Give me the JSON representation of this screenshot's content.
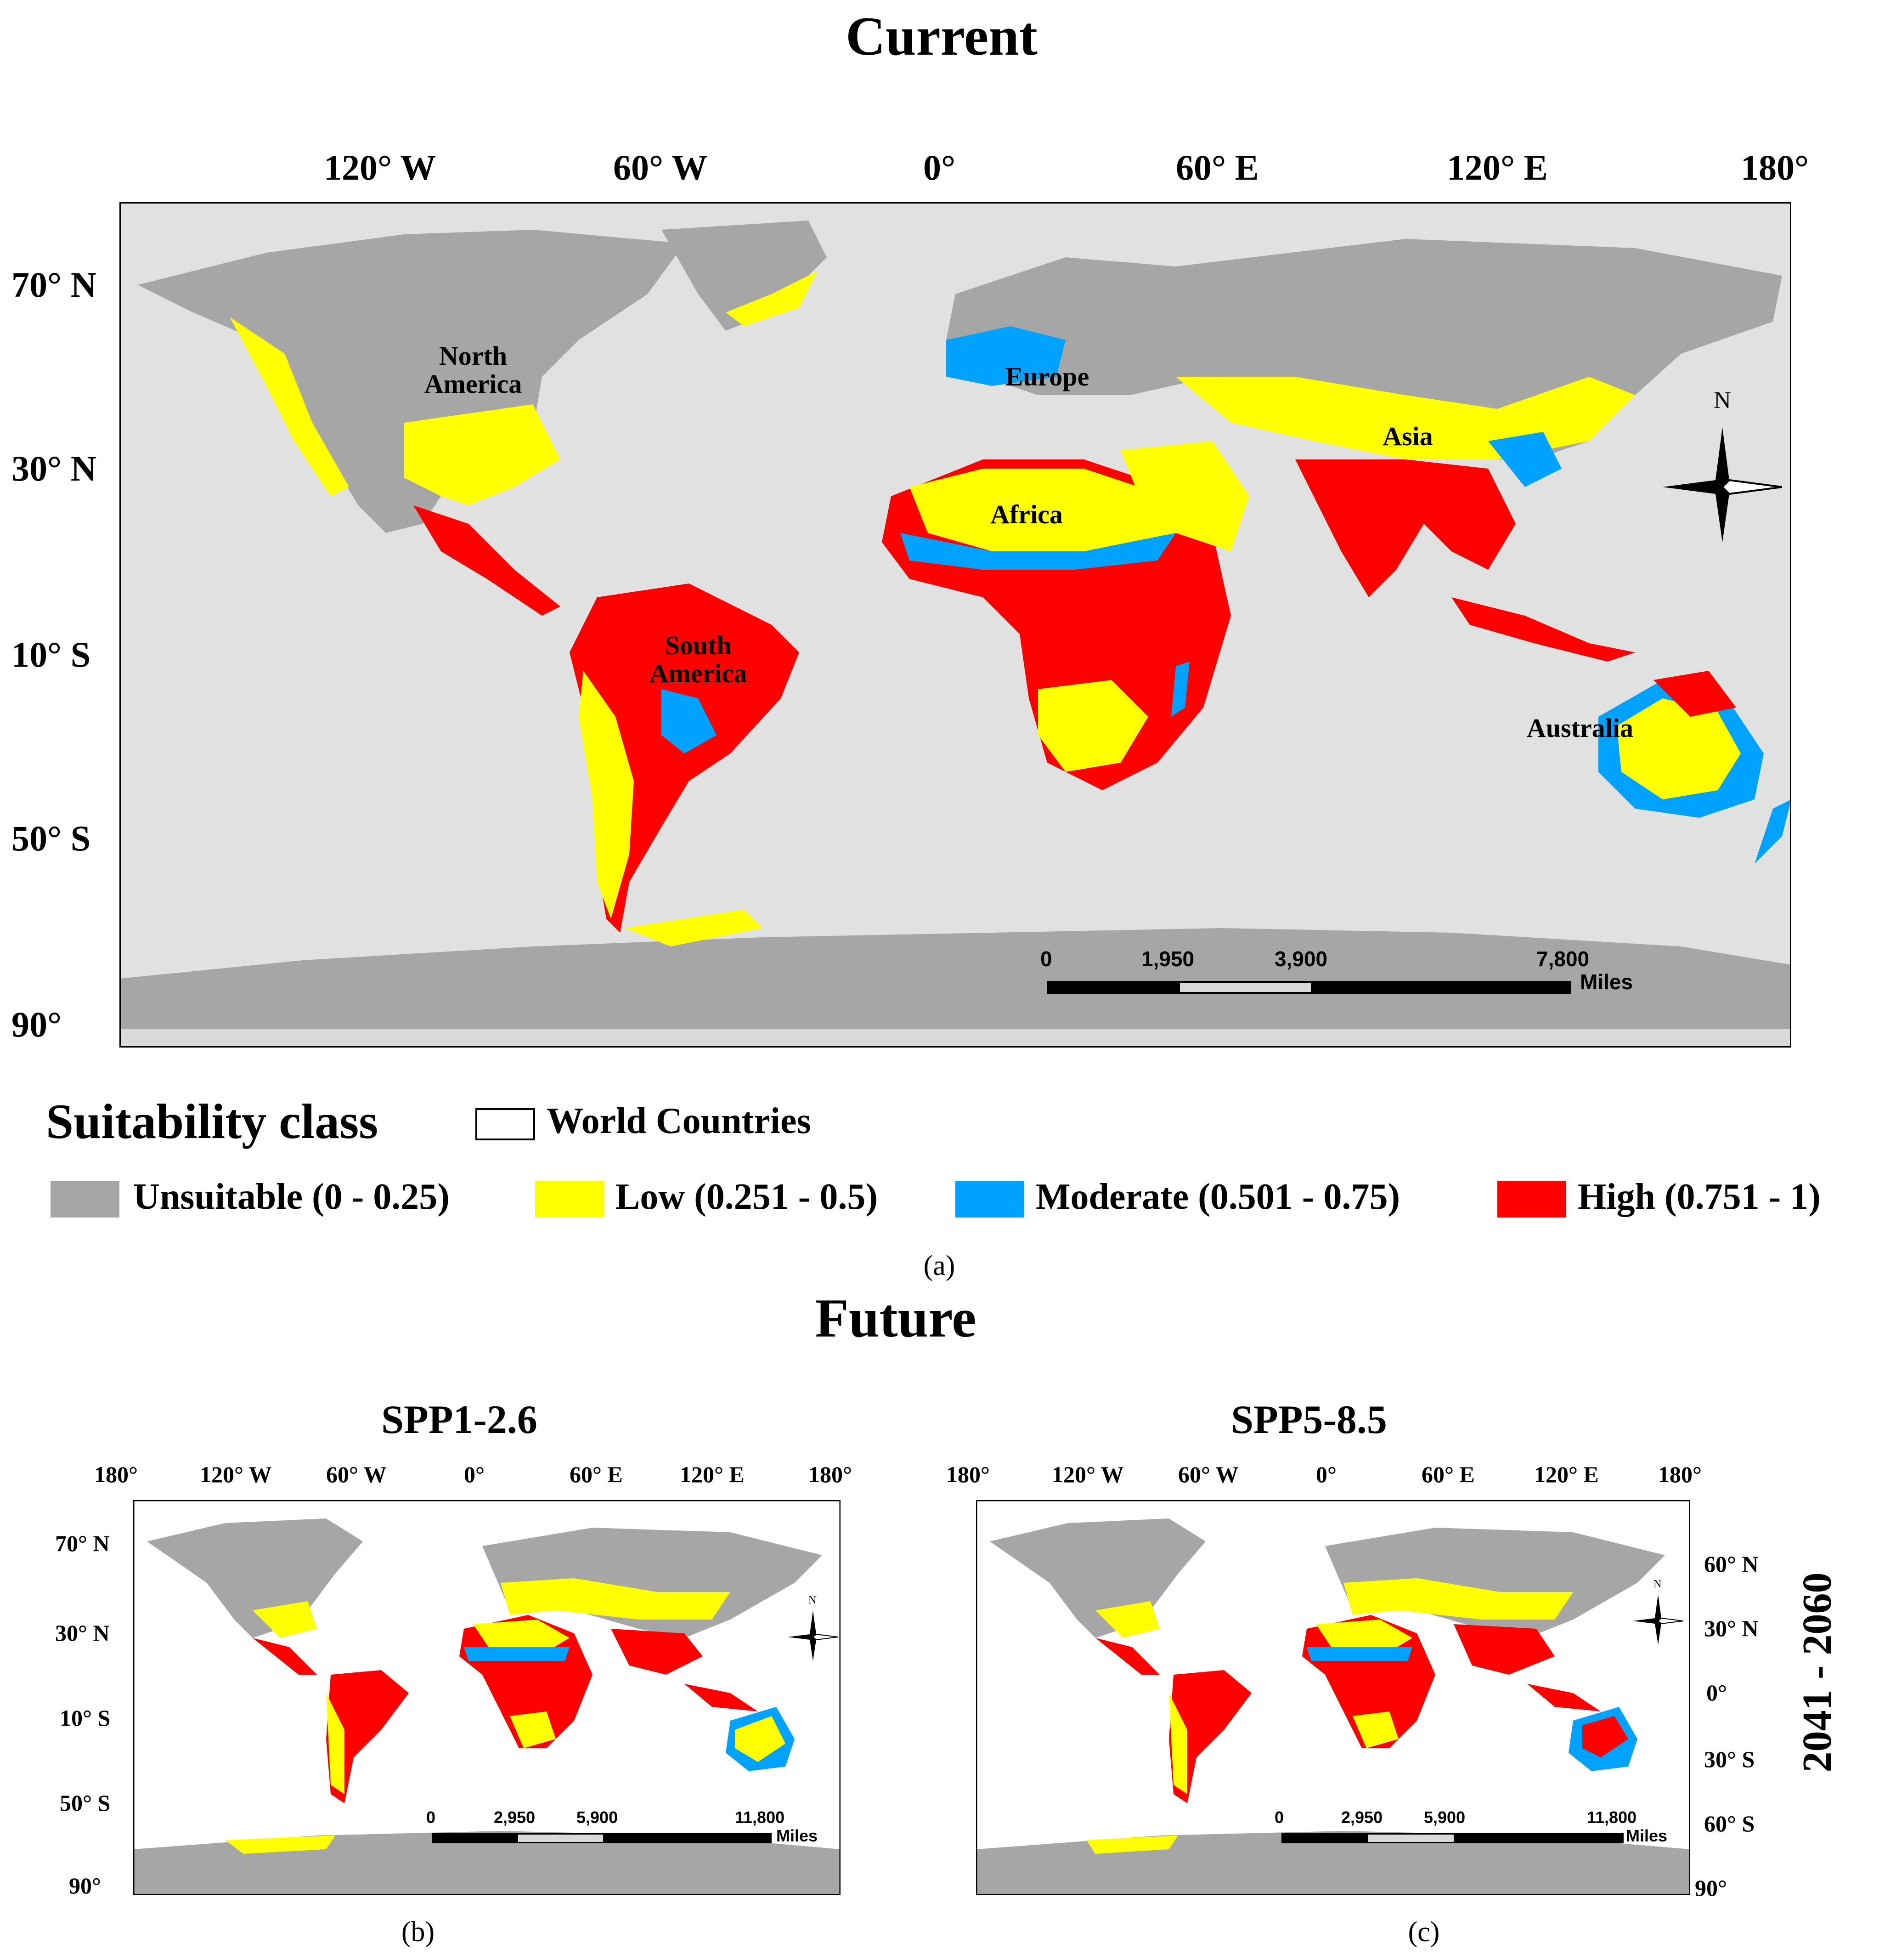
{
  "colors": {
    "unsuitable": "#a6a6a6",
    "low": "#ffff00",
    "moderate": "#00a2ff",
    "high": "#ff0000",
    "ocean_current": "#e1e1e1",
    "ocean_future": "#ffffff"
  },
  "panel_a": {
    "title": "Current",
    "caption": "(a)",
    "lon_ticks": [
      "120° W",
      "60° W",
      "0°",
      "60° E",
      "120° E",
      "180°"
    ],
    "lat_ticks": [
      "70° N",
      "30° N",
      "10° S",
      "50° S",
      "90°"
    ],
    "regions": {
      "north_america": "North America",
      "europe": "Europe",
      "asia": "Asia",
      "africa": "Africa",
      "south_america": "South America",
      "australia": "Australia"
    },
    "north_label": "N",
    "scale": {
      "values": [
        "0",
        "1,950",
        "3,900",
        "7,800"
      ],
      "unit": "Miles"
    }
  },
  "legend": {
    "title": "Suitability class",
    "countries_label": "World Countries",
    "classes": [
      {
        "label": "Unsuitable (0 - 0.25)",
        "color_key": "unsuitable"
      },
      {
        "label": "Low (0.251 - 0.5)",
        "color_key": "low"
      },
      {
        "label": "Moderate (0.501 - 0.75)",
        "color_key": "moderate"
      },
      {
        "label": "High (0.751 - 1)",
        "color_key": "high"
      }
    ]
  },
  "future": {
    "title": "Future",
    "period": "2041 - 2060",
    "panel_b": {
      "title": "SPP1-2.6",
      "caption": "(b)",
      "lon_ticks": [
        "180°",
        "120° W",
        "60° W",
        "0°",
        "60° E",
        "120° E",
        "180°"
      ],
      "lat_ticks": [
        "70° N",
        "30° N",
        "10° S",
        "50° S",
        "90°"
      ],
      "north_label": "N",
      "scale": {
        "values": [
          "0",
          "2,950",
          "5,900",
          "11,800"
        ],
        "unit": "Miles"
      }
    },
    "panel_c": {
      "title": "SPP5-8.5",
      "caption": "(c)",
      "lon_ticks": [
        "180°",
        "120° W",
        "60° W",
        "0°",
        "60° E",
        "120° E",
        "180°"
      ],
      "lat_ticks": [
        "60° N",
        "30° N",
        "0°",
        "30° S",
        "60° S",
        "90°"
      ],
      "north_label": "N",
      "scale": {
        "values": [
          "0",
          "2,950",
          "5,900",
          "11,800"
        ],
        "unit": "Miles"
      }
    }
  }
}
